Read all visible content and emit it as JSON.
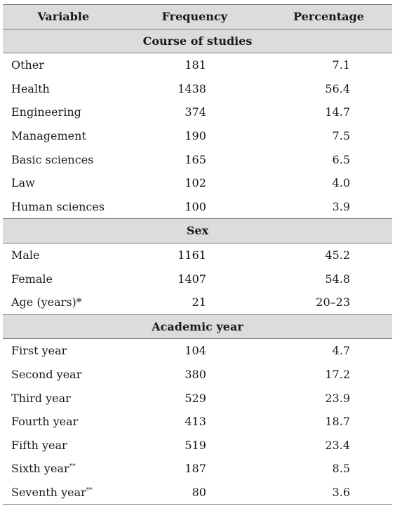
{
  "header": {
    "col1": "Variable",
    "col2": "Frequency",
    "col3": "Percentage"
  },
  "sections": [
    {
      "title": "Course of studies",
      "rows": [
        {
          "label": "Other",
          "frequency": "181",
          "percentage": "7.1"
        },
        {
          "label": "Health",
          "frequency": "1438",
          "percentage": "56.4"
        },
        {
          "label": "Engineering",
          "frequency": "374",
          "percentage": "14.7"
        },
        {
          "label": "Management",
          "frequency": "190",
          "percentage": "7.5"
        },
        {
          "label": "Basic sciences",
          "frequency": "165",
          "percentage": "6.5"
        },
        {
          "label": "Law",
          "frequency": "102",
          "percentage": "4.0"
        },
        {
          "label": "Human sciences",
          "frequency": "100",
          "percentage": "3.9"
        }
      ]
    },
    {
      "title": "Sex",
      "rows": [
        {
          "label": "Male",
          "frequency": "1161",
          "percentage": "45.2"
        },
        {
          "label": "Female",
          "frequency": "1407",
          "percentage": "54.8"
        },
        {
          "label": "Age (years)*",
          "frequency": "21",
          "percentage": "20–23"
        }
      ]
    },
    {
      "title": "Academic year",
      "rows": [
        {
          "label": "First year",
          "frequency": "104",
          "percentage": "4.7"
        },
        {
          "label": "Second year",
          "frequency": "380",
          "percentage": "17.2"
        },
        {
          "label": "Third year",
          "frequency": "529",
          "percentage": "23.9"
        },
        {
          "label": "Fourth year",
          "frequency": "413",
          "percentage": "18.7"
        },
        {
          "label": "Fifth year",
          "frequency": "519",
          "percentage": "23.4"
        },
        {
          "label": "Sixth year",
          "sup": "**",
          "frequency": "187",
          "percentage": "8.5"
        },
        {
          "label": "Seventh year",
          "sup": "**",
          "frequency": "80",
          "percentage": "3.6"
        }
      ]
    }
  ]
}
